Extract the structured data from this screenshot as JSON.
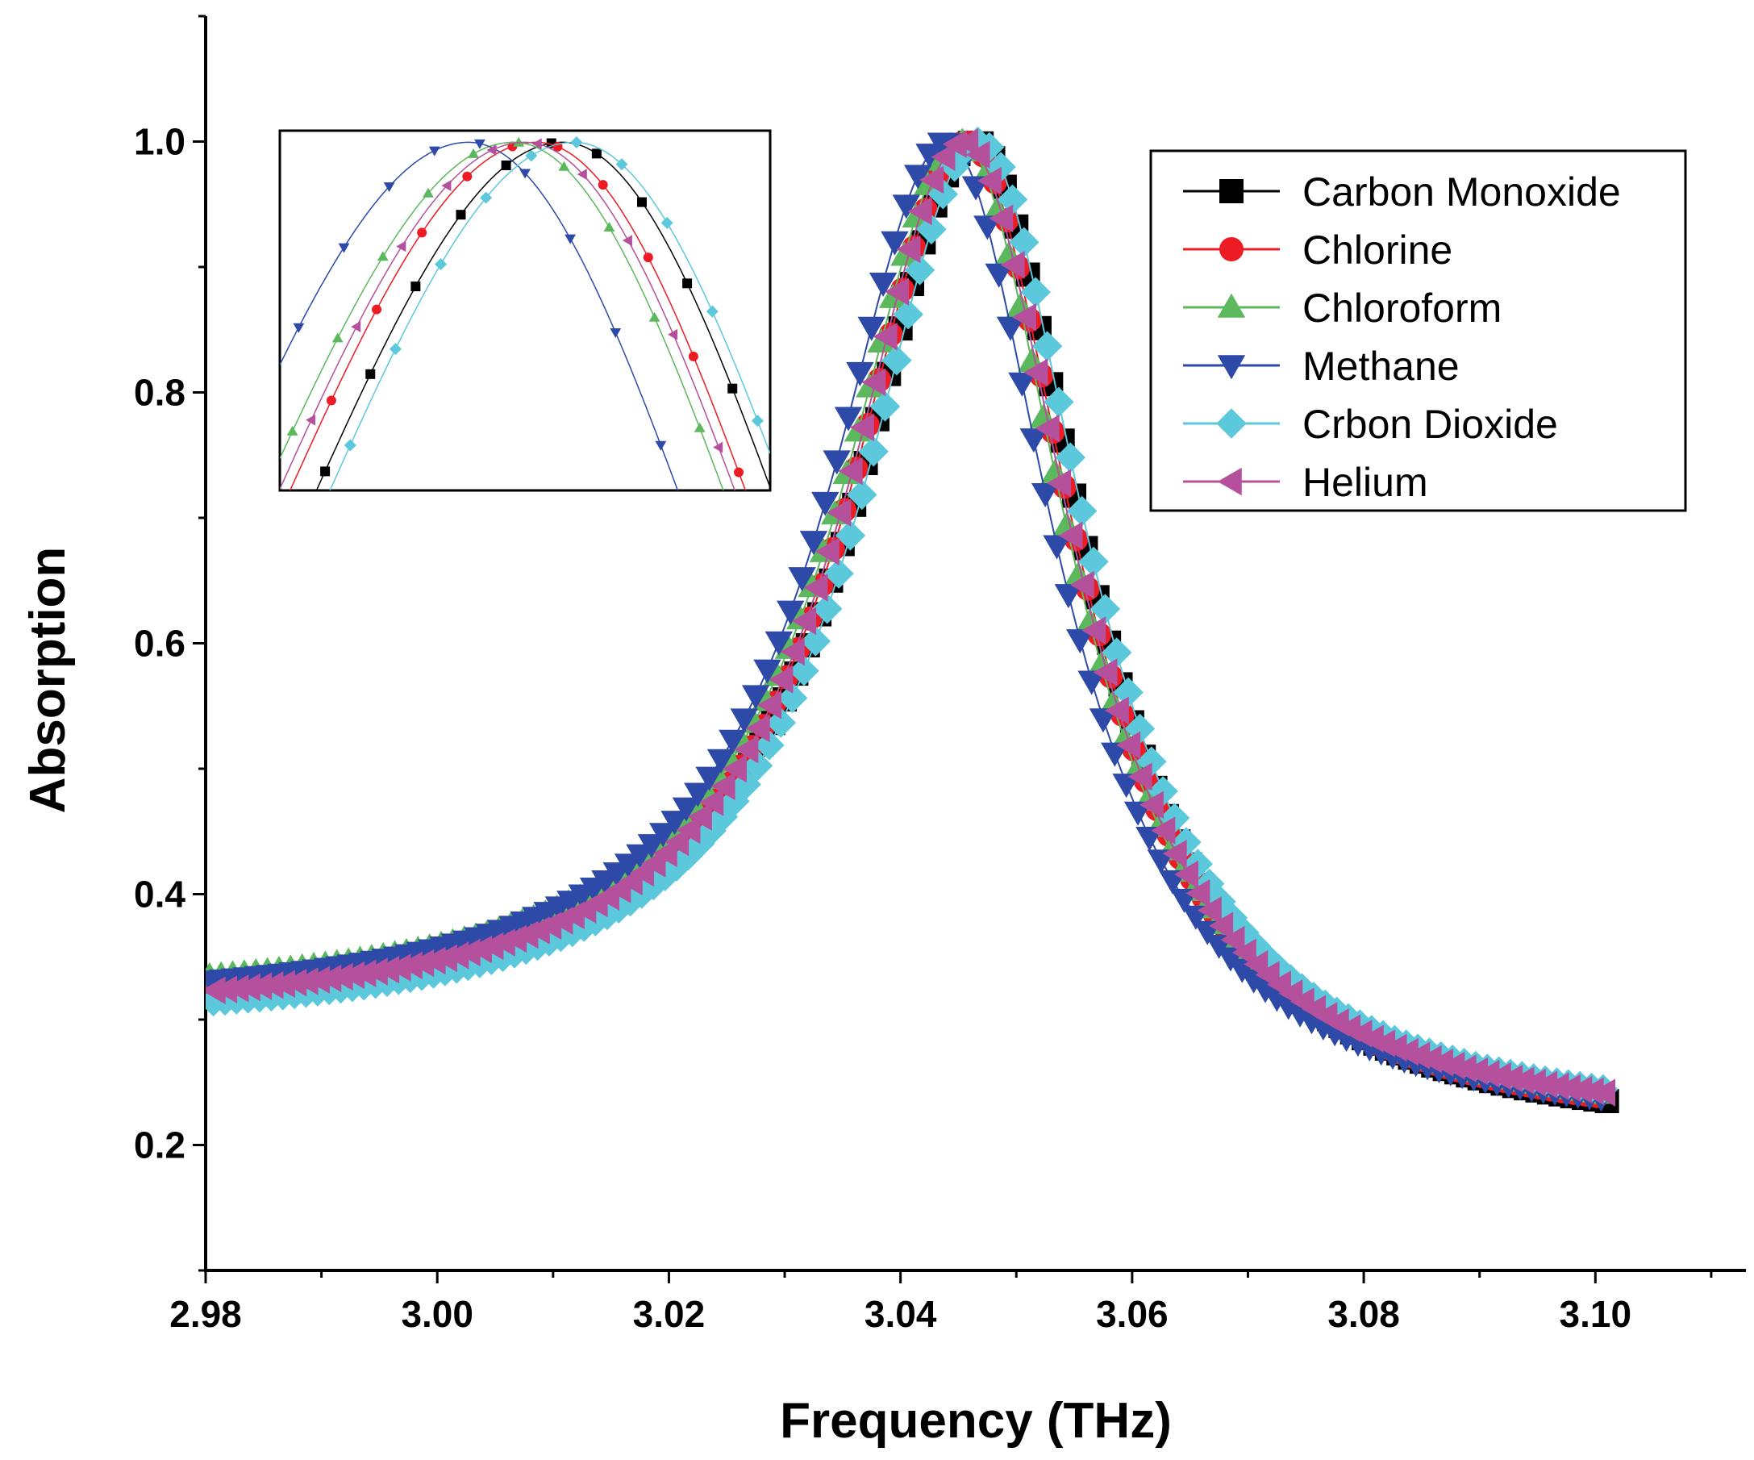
{
  "chart_data": {
    "type": "line",
    "title": "",
    "xlabel": "Frequency (THz)",
    "ylabel": "Absorption",
    "xlim": [
      2.98,
      3.113
    ],
    "ylim": [
      0.1,
      1.1
    ],
    "xticks": [
      2.98,
      3.0,
      3.02,
      3.04,
      3.06,
      3.08,
      3.1
    ],
    "xtick_labels": [
      "2.98",
      "3.00",
      "3.02",
      "3.04",
      "3.06",
      "3.08",
      "3.10"
    ],
    "yticks": [
      0.2,
      0.4,
      0.6,
      0.8,
      1.0
    ],
    "ytick_labels": [
      "0.2",
      "0.4",
      "0.6",
      "0.8",
      "1.0"
    ],
    "grid": false,
    "legend_position": "top-right",
    "series": [
      {
        "name": "Carbon Monoxide",
        "color": "#000000",
        "marker": "square",
        "f0": 3.0465,
        "low_base": 0.3,
        "high_base": 0.201
      },
      {
        "name": "Chlorine",
        "color": "#ed1c24",
        "marker": "circle",
        "f0": 3.0458,
        "low_base": 0.3,
        "high_base": 0.205
      },
      {
        "name": "Chloroform",
        "color": "#5cb85c",
        "marker": "triangle-up",
        "f0": 3.0452,
        "low_base": 0.31,
        "high_base": 0.208
      },
      {
        "name": "Methane",
        "color": "#2d4aa8",
        "marker": "triangle-down",
        "f0": 3.044,
        "low_base": 0.305,
        "high_base": 0.206
      },
      {
        "name": "Crbon Dioxide",
        "color": "#5bc8dc",
        "marker": "diamond",
        "f0": 3.0468,
        "low_base": 0.29,
        "high_base": 0.21
      },
      {
        "name": "Helium",
        "color": "#b5509c",
        "marker": "triangle-left",
        "f0": 3.0455,
        "low_base": 0.298,
        "high_base": 0.209
      }
    ],
    "curve_params": {
      "peak": 1.0,
      "half_width_low": 0.0125,
      "half_width_high": 0.0115,
      "x_start": 2.98,
      "x_end": 3.101,
      "marker_step": 0.001
    },
    "inset": {
      "description": "zoom of peak region",
      "xlim": [
        3.039,
        3.052
      ],
      "ylim": [
        0.85,
        1.005
      ]
    }
  }
}
